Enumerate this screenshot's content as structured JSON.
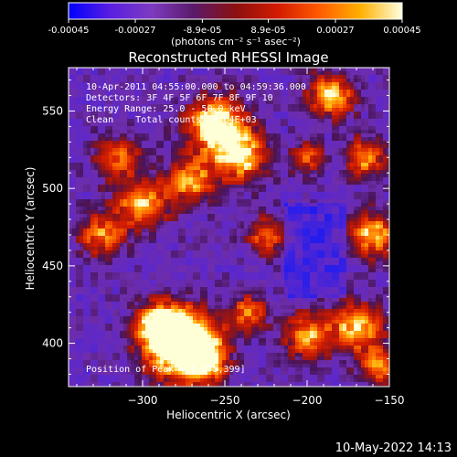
{
  "chart_data": {
    "type": "heatmap",
    "title": "Reconstructed RHESSI Image",
    "xlabel": "Heliocentric X (arcsec)",
    "ylabel": "Heliocentric Y (arcsec)",
    "xlim": [
      -345,
      -150
    ],
    "ylim": [
      372,
      578
    ],
    "x_ticks": [
      -300,
      -250,
      -200,
      -150
    ],
    "y_ticks": [
      400,
      450,
      500,
      550
    ],
    "colorbar": {
      "min": -0.00045,
      "max": 0.00045,
      "tick_labels": [
        "-0.00045",
        "-0.00027",
        "-8.9e-05",
        "8.9e-05",
        "0.00027",
        "0.00045"
      ],
      "unit_label": "(photons cm⁻² s⁻¹ asec⁻²)",
      "colors": [
        "#0000ff",
        "#5a1ee0",
        "#7d3bc0",
        "#5a1a6a",
        "#8b1010",
        "#d21a00",
        "#ff5a00",
        "#ffb000",
        "#ffffe0"
      ]
    },
    "annotations": {
      "time_range": "10-Apr-2011 04:55:00.000 to 04:59:36.000",
      "detectors": "Detectors: 3F 4F 5F 6F 7F 8F 9F 10",
      "energy_range": "Energy Range: 25.0 - 50.0 keV",
      "clean_counts": "Clean    Total counts: 9.64E+03",
      "peak_position": "Position of Peak = [-275,399]"
    },
    "peak": {
      "x": -275,
      "y": 399
    }
  },
  "footer": {
    "date": "10-May-2022 14:13"
  }
}
